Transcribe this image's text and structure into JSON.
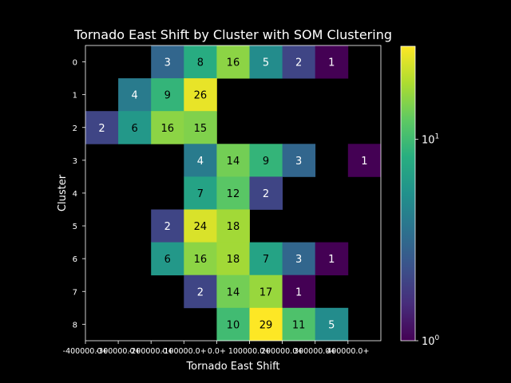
{
  "chart_data": {
    "type": "heatmap",
    "title": "Tornado East Shift by Cluster with SOM Clustering",
    "xlabel": "Tornado East Shift",
    "ylabel": "Cluster",
    "x_tick_labels": [
      "-400000.0+",
      "-300000.0+",
      "-200000.0+",
      "-100000.0+",
      "0.0+",
      "100000.0+",
      "200000.0+",
      "300000.0+",
      "400000.0+"
    ],
    "y_tick_labels": [
      "0",
      "1",
      "2",
      "3",
      "4",
      "5",
      "6",
      "7",
      "8"
    ],
    "colorscale": "viridis",
    "color_scale_type": "log",
    "color_range": [
      1,
      29
    ],
    "colorbar_ticks": [
      {
        "value": 1,
        "base": "10",
        "exp": "0"
      },
      {
        "value": 10,
        "base": "10",
        "exp": "1"
      }
    ],
    "background": "#000000",
    "values": [
      [
        null,
        null,
        3,
        8,
        16,
        5,
        2,
        1,
        null
      ],
      [
        null,
        4,
        9,
        26,
        null,
        null,
        null,
        null,
        null
      ],
      [
        2,
        6,
        16,
        15,
        null,
        null,
        null,
        null,
        null
      ],
      [
        null,
        null,
        null,
        4,
        14,
        9,
        3,
        null,
        1
      ],
      [
        null,
        null,
        null,
        7,
        12,
        2,
        null,
        null,
        null
      ],
      [
        null,
        null,
        2,
        24,
        18,
        null,
        null,
        null,
        null
      ],
      [
        null,
        null,
        6,
        16,
        18,
        7,
        3,
        1,
        null
      ],
      [
        null,
        null,
        null,
        2,
        14,
        17,
        1,
        null,
        null
      ],
      [
        null,
        null,
        null,
        null,
        10,
        29,
        11,
        5,
        null
      ]
    ]
  }
}
